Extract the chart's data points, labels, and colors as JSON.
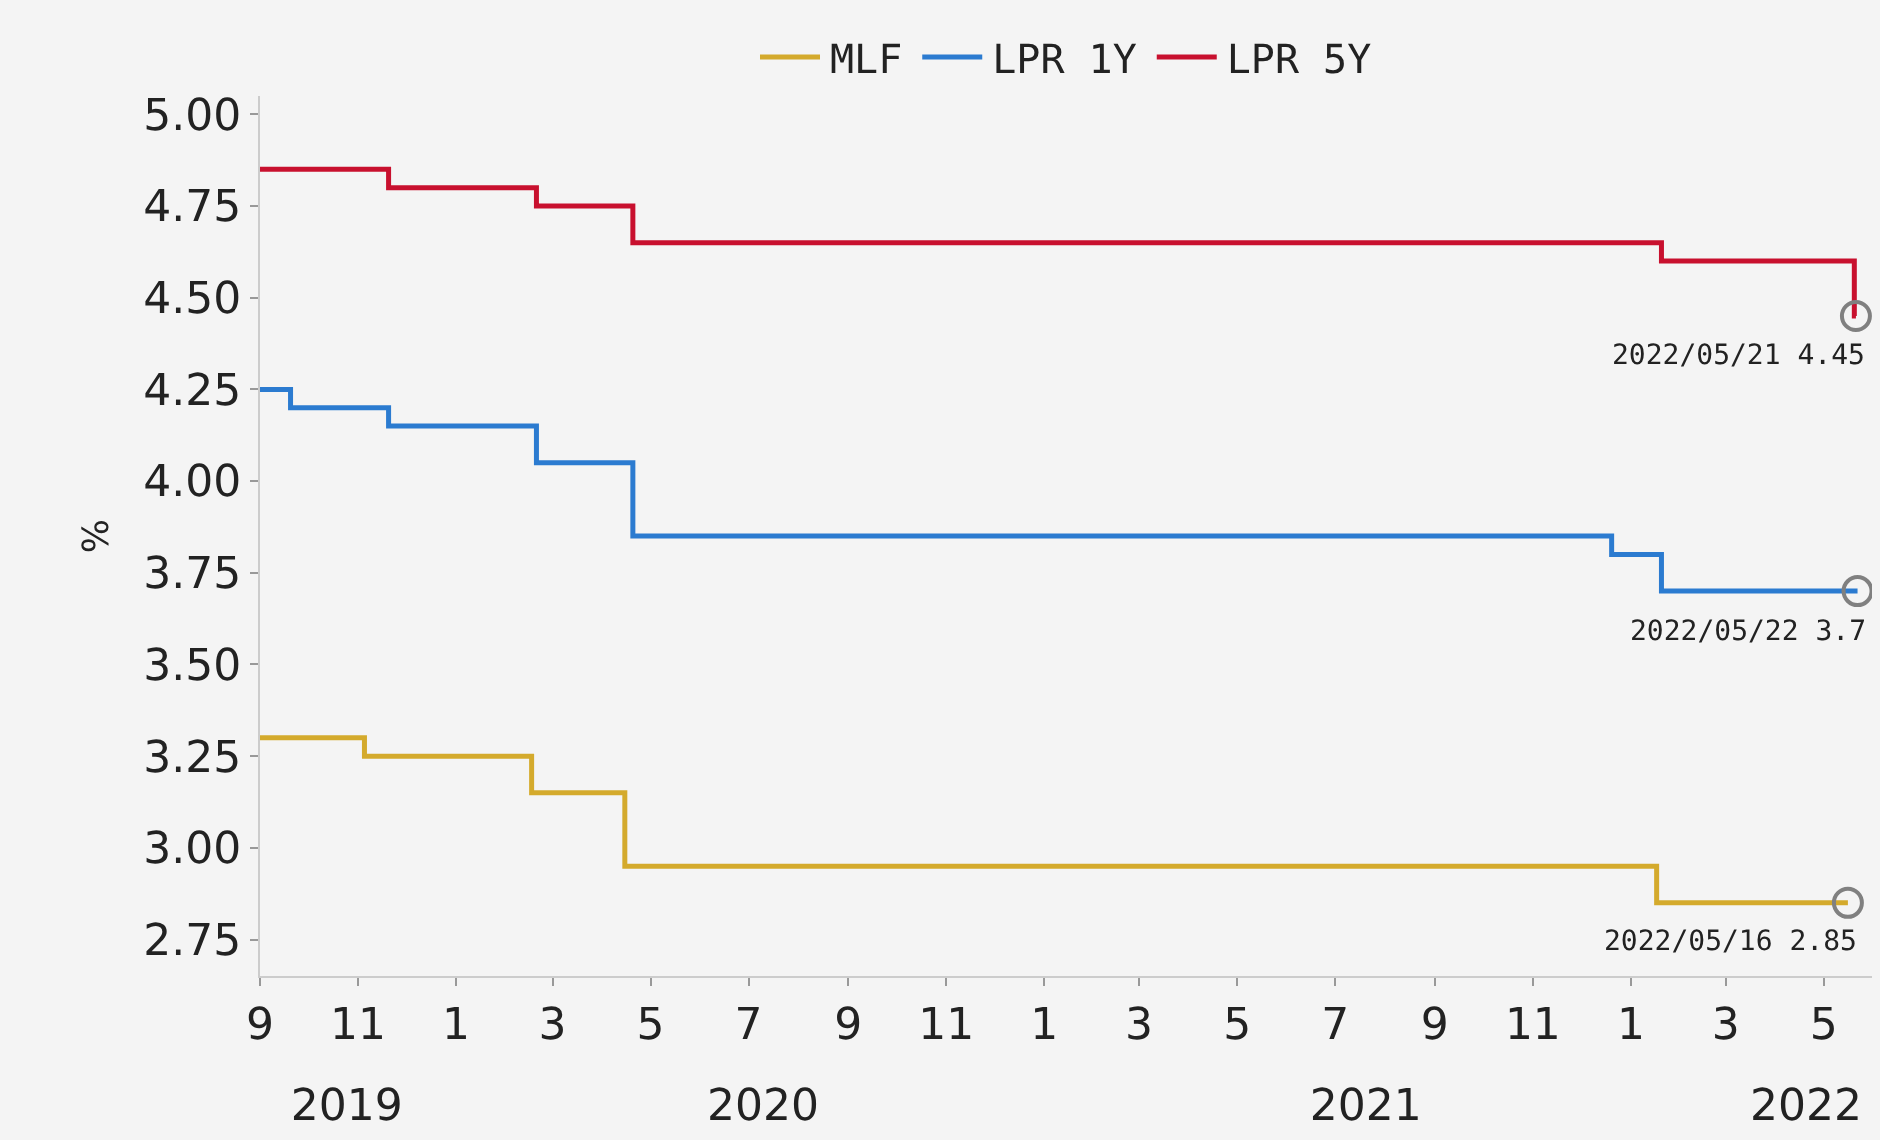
{
  "chart_data": {
    "type": "step",
    "ylabel": "%",
    "series": [
      {
        "name": "MLF",
        "color": "#d4aa2c",
        "x": [
          "2019-09-01",
          "2019-11-05",
          "2020-02-17",
          "2020-04-15",
          "2022-01-17",
          "2022-05-16"
        ],
        "values": [
          3.3,
          3.25,
          3.15,
          2.95,
          2.85,
          2.85
        ]
      },
      {
        "name": "LPR 1Y",
        "color": "#2b7bd0",
        "x": [
          "2019-09-01",
          "2019-09-20",
          "2019-11-20",
          "2020-02-20",
          "2020-04-20",
          "2021-12-20",
          "2022-01-20",
          "2022-05-22"
        ],
        "values": [
          4.25,
          4.2,
          4.15,
          4.05,
          3.85,
          3.8,
          3.7,
          3.7
        ]
      },
      {
        "name": "LPR 5Y",
        "color": "#c8102e",
        "x": [
          "2019-09-01",
          "2019-11-20",
          "2020-02-20",
          "2020-04-20",
          "2022-01-20",
          "2022-05-20",
          "2022-05-21"
        ],
        "values": [
          4.85,
          4.8,
          4.75,
          4.65,
          4.6,
          4.45,
          4.45
        ]
      }
    ],
    "annotations": [
      {
        "text": "2022/05/21 4.45",
        "x": "2022-05-21",
        "y": 4.45
      },
      {
        "text": "2022/05/22 3.7",
        "x": "2022-05-22",
        "y": 3.7
      },
      {
        "text": "2022/05/16 2.85",
        "x": "2022-05-16",
        "y": 2.85
      }
    ],
    "xlim": [
      "2019-09-01",
      "2022-05-31"
    ],
    "xticks": [
      {
        "value": "2019-09-01",
        "label": "9"
      },
      {
        "value": "2019-11-01",
        "label": "11"
      },
      {
        "value": "2020-01-01",
        "label": "1"
      },
      {
        "value": "2020-03-01",
        "label": "3"
      },
      {
        "value": "2020-05-01",
        "label": "5"
      },
      {
        "value": "2020-07-01",
        "label": "7"
      },
      {
        "value": "2020-09-01",
        "label": "9"
      },
      {
        "value": "2020-11-01",
        "label": "11"
      },
      {
        "value": "2021-01-01",
        "label": "1"
      },
      {
        "value": "2021-03-01",
        "label": "3"
      },
      {
        "value": "2021-05-01",
        "label": "5"
      },
      {
        "value": "2021-07-01",
        "label": "7"
      },
      {
        "value": "2021-09-01",
        "label": "9"
      },
      {
        "value": "2021-11-01",
        "label": "11"
      },
      {
        "value": "2022-01-01",
        "label": "1"
      },
      {
        "value": "2022-03-01",
        "label": "3"
      },
      {
        "value": "2022-05-01",
        "label": "5"
      }
    ],
    "x2lim": [
      "2019-09-01",
      "2022-05-31"
    ],
    "x2ticks": [
      {
        "value": "2019-10-25",
        "label": "2019"
      },
      {
        "value": "2020-07-10",
        "label": "2020"
      },
      {
        "value": "2021-07-20",
        "label": "2021"
      },
      {
        "value": "2022-04-20",
        "label": "2022"
      }
    ],
    "ylim": [
      2.65,
      5.05
    ],
    "yticks": [
      {
        "value": 2.75,
        "label": "2.75"
      },
      {
        "value": 3.0,
        "label": "3.00"
      },
      {
        "value": 3.25,
        "label": "3.25"
      },
      {
        "value": 3.5,
        "label": "3.50"
      },
      {
        "value": 3.75,
        "label": "3.75"
      },
      {
        "value": 4.0,
        "label": "4.00"
      },
      {
        "value": 4.25,
        "label": "4.25"
      },
      {
        "value": 4.5,
        "label": "4.50"
      },
      {
        "value": 4.75,
        "label": "4.75"
      },
      {
        "value": 5.0,
        "label": "5.00"
      }
    ],
    "grid": false,
    "legend": "top",
    "marker": "none",
    "line_style": "solid"
  }
}
